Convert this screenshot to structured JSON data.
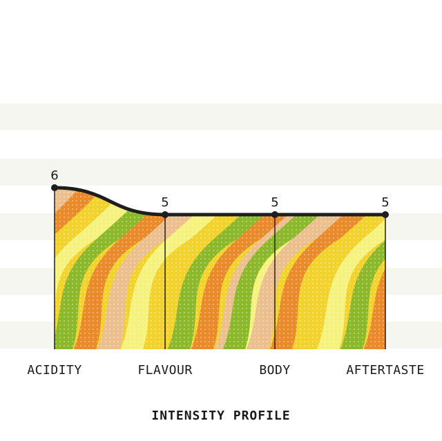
{
  "chart_data": {
    "type": "area",
    "title": "INTENSITY PROFILE",
    "categories": [
      "ACIDITY",
      "FLAVOUR",
      "BODY",
      "AFTERTASTE"
    ],
    "values": [
      6,
      5,
      5,
      5
    ],
    "value_labels": [
      "6",
      "5",
      "5",
      "5"
    ],
    "ylim": [
      0,
      10
    ],
    "grid": "horizontal bands",
    "fill_colors": [
      "#f2d22c",
      "#e98a2b",
      "#8cb92b",
      "#f6f27e",
      "#ecbf8e"
    ],
    "line_color": "#1e1e1e",
    "band_color": "#f6f6f1"
  }
}
